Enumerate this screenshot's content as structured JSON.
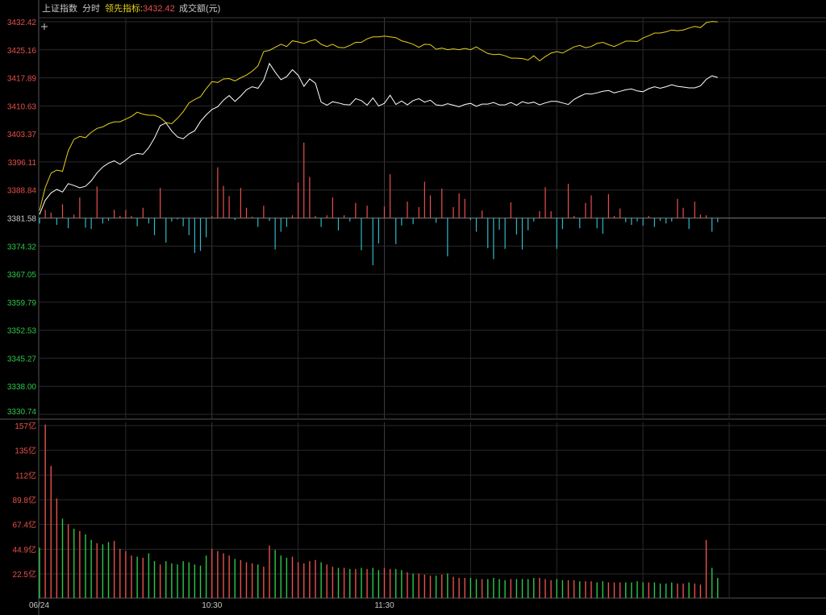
{
  "header": {
    "index_name": "上证指数",
    "mode": "分时",
    "indicator_label": "领先指标:",
    "indicator_value": "3432.42",
    "volume_label": "成交额(元)"
  },
  "colors": {
    "background": "#000000",
    "grid": "#2a2a2a",
    "up": "#e8504c",
    "down": "#2fb8c8",
    "baseline_label": "#cccccc",
    "price_line": "#ffffff",
    "leading_line": "#e6d11a",
    "volume_green": "#2cc84a",
    "header_text": "#c8c8c8",
    "header_accent": "#e6d11a"
  },
  "chart_data": [
    {
      "type": "line",
      "name": "price-panel",
      "y_ticks": [
        "3432.42",
        "3425.16",
        "3417.89",
        "3410.63",
        "3403.37",
        "3396.11",
        "3388.84",
        "3381.58",
        "3374.32",
        "3367.05",
        "3359.79",
        "3352.53",
        "3345.27",
        "3338.00",
        "3330.74"
      ],
      "ylim": [
        3330.74,
        3432.42
      ],
      "baseline": 3381.58,
      "minutes_total": 240,
      "x_ticks": [
        "06/24",
        "10:30",
        "11:30"
      ],
      "series": [
        {
          "key": "price",
          "minute": [
            0,
            2,
            4,
            6,
            8,
            10,
            12,
            14,
            16,
            18,
            20,
            22,
            24,
            26,
            28,
            30,
            32,
            34,
            36,
            38,
            40,
            42,
            44,
            46,
            48,
            50,
            52,
            54,
            56,
            58,
            60,
            62,
            64,
            66,
            68,
            70,
            72,
            74,
            76,
            78,
            80,
            82,
            84,
            86,
            88,
            90,
            92,
            94,
            96,
            98,
            100,
            102,
            104,
            106,
            108,
            110,
            112,
            114,
            116,
            118,
            120,
            122,
            124,
            126,
            128,
            130,
            132,
            134,
            136,
            138,
            140,
            142,
            144,
            146,
            148,
            150,
            152,
            154,
            156,
            158,
            160,
            162,
            164,
            166,
            168,
            170,
            172,
            174,
            176,
            178,
            180,
            182,
            184,
            186,
            188,
            190,
            192,
            194,
            196,
            198,
            200,
            202,
            204,
            206,
            208,
            210,
            212,
            214,
            216,
            218,
            220,
            222,
            224,
            226,
            228,
            230,
            232,
            234,
            236
          ],
          "values": [
            3382.5,
            3386.2,
            3388.1,
            3389.0,
            3388.3,
            3390.5,
            3390.0,
            3389.4,
            3389.8,
            3391.2,
            3393.3,
            3394.8,
            3395.8,
            3396.4,
            3395.5,
            3396.6,
            3397.8,
            3398.3,
            3398.1,
            3399.8,
            3402.3,
            3405.5,
            3406.2,
            3404.1,
            3402.6,
            3402.1,
            3403.4,
            3404.2,
            3406.6,
            3408.3,
            3409.7,
            3410.4,
            3412.1,
            3413.3,
            3411.8,
            3413.2,
            3414.8,
            3415.6,
            3415.2,
            3417.3,
            3421.6,
            3419.4,
            3417.4,
            3418.2,
            3420.0,
            3418.6,
            3415.7,
            3417.6,
            3416.5,
            3411.6,
            3410.8,
            3411.7,
            3411.4,
            3411.0,
            3410.9,
            3412.5,
            3412.0,
            3410.8,
            3412.7,
            3410.6,
            3411.3,
            3413.4,
            3411.0,
            3411.9,
            3410.9,
            3412.0,
            3412.5,
            3411.6,
            3412.1,
            3410.9,
            3410.7,
            3411.2,
            3410.8,
            3410.4,
            3411.0,
            3411.3,
            3410.5,
            3411.1,
            3411.1,
            3411.5,
            3410.9,
            3410.9,
            3411.5,
            3410.8,
            3411.7,
            3411.3,
            3411.6,
            3410.9,
            3411.4,
            3411.8,
            3411.8,
            3411.4,
            3411.0,
            3412.3,
            3413.1,
            3413.8,
            3413.7,
            3414.0,
            3414.4,
            3414.6,
            3414.0,
            3414.4,
            3414.8,
            3415.0,
            3414.5,
            3414.3,
            3415.1,
            3415.6,
            3415.2,
            3415.6,
            3416.1,
            3415.7,
            3415.5,
            3415.3,
            3415.3,
            3415.8,
            3417.5,
            3418.4,
            3418.0
          ]
        },
        {
          "key": "leading",
          "minute": [
            0,
            2,
            4,
            6,
            8,
            10,
            12,
            14,
            16,
            18,
            20,
            22,
            24,
            26,
            28,
            30,
            32,
            34,
            36,
            38,
            40,
            42,
            44,
            46,
            48,
            50,
            52,
            54,
            56,
            58,
            60,
            62,
            64,
            66,
            68,
            70,
            72,
            74,
            76,
            78,
            80,
            82,
            84,
            86,
            88,
            90,
            92,
            94,
            96,
            98,
            100,
            102,
            104,
            106,
            108,
            110,
            112,
            114,
            116,
            118,
            120,
            122,
            124,
            126,
            128,
            130,
            132,
            134,
            136,
            138,
            140,
            142,
            144,
            146,
            148,
            150,
            152,
            154,
            156,
            158,
            160,
            162,
            164,
            166,
            168,
            170,
            172,
            174,
            176,
            178,
            180,
            182,
            184,
            186,
            188,
            190,
            192,
            194,
            196,
            198,
            200,
            202,
            204,
            206,
            208,
            210,
            212,
            214,
            216,
            218,
            220,
            222,
            224,
            226,
            228,
            230,
            232,
            234,
            236
          ],
          "values": [
            3383.5,
            3389.5,
            3393.2,
            3394.0,
            3393.7,
            3399.0,
            3402.0,
            3402.7,
            3402.4,
            3403.8,
            3404.8,
            3405.2,
            3406.0,
            3406.5,
            3406.5,
            3407.2,
            3407.9,
            3409.0,
            3408.5,
            3408.2,
            3408.2,
            3407.6,
            3406.3,
            3406.0,
            3407.4,
            3409.1,
            3411.4,
            3412.3,
            3413.0,
            3415.1,
            3416.9,
            3416.7,
            3417.6,
            3417.7,
            3417.1,
            3417.9,
            3418.6,
            3419.6,
            3421.0,
            3424.7,
            3425.0,
            3425.8,
            3426.6,
            3426.0,
            3427.5,
            3427.2,
            3426.8,
            3427.4,
            3427.8,
            3426.6,
            3426.0,
            3426.6,
            3425.8,
            3425.7,
            3426.3,
            3427.1,
            3427.1,
            3428.0,
            3428.5,
            3428.5,
            3428.7,
            3428.5,
            3428.3,
            3427.5,
            3427.1,
            3426.6,
            3425.8,
            3426.6,
            3426.5,
            3425.3,
            3425.6,
            3425.2,
            3425.4,
            3425.2,
            3425.5,
            3425.2,
            3425.9,
            3425.0,
            3424.2,
            3423.9,
            3424.0,
            3423.6,
            3423.0,
            3423.0,
            3422.9,
            3422.5,
            3423.6,
            3422.3,
            3423.4,
            3424.3,
            3424.7,
            3424.3,
            3425.1,
            3425.9,
            3426.3,
            3425.7,
            3426.0,
            3426.8,
            3427.1,
            3426.5,
            3426.0,
            3426.7,
            3427.4,
            3427.4,
            3427.3,
            3428.2,
            3428.8,
            3429.5,
            3429.5,
            3429.8,
            3430.3,
            3430.1,
            3430.3,
            3430.8,
            3431.2,
            3430.9,
            3432.2,
            3432.5,
            3432.4
          ]
        }
      ],
      "buy_sell_bars": {
        "minute": [
          0,
          2,
          4,
          6,
          8,
          10,
          12,
          14,
          16,
          18,
          20,
          22,
          24,
          26,
          28,
          30,
          32,
          34,
          36,
          38,
          40,
          42,
          44,
          46,
          48,
          50,
          52,
          54,
          56,
          58,
          60,
          62,
          64,
          66,
          68,
          70,
          72,
          74,
          76,
          78,
          80,
          82,
          84,
          86,
          88,
          90,
          92,
          94,
          96,
          98,
          100,
          102,
          104,
          106,
          108,
          110,
          112,
          114,
          116,
          118,
          120,
          122,
          124,
          126,
          128,
          130,
          132,
          134,
          136,
          138,
          140,
          142,
          144,
          146,
          148,
          150,
          152,
          154,
          156,
          158,
          160,
          162,
          164,
          166,
          168,
          170,
          172,
          174,
          176,
          178,
          180,
          182,
          184,
          186,
          188,
          190,
          192,
          194,
          196,
          198,
          200,
          202,
          204,
          206,
          208,
          210,
          212,
          214,
          216,
          218,
          220,
          222,
          224,
          226,
          228,
          230,
          232,
          234,
          236
        ],
        "values": [
          -0.8,
          1.2,
          0.8,
          -1.0,
          2.0,
          -1.5,
          0.5,
          3.0,
          -1.4,
          -1.6,
          4.6,
          -0.8,
          -0.4,
          1.2,
          0.3,
          1.2,
          0.3,
          -1.2,
          1.5,
          -0.8,
          -2.5,
          4.4,
          -3.6,
          -0.5,
          -0.2,
          -1.2,
          -2.5,
          -5.1,
          -4.8,
          -2.8,
          0.3,
          7.4,
          4.7,
          3.2,
          -0.3,
          4.4,
          1.5,
          0.2,
          -1.3,
          1.8,
          -0.4,
          -4.6,
          -2.0,
          -1.3,
          0.4,
          5.2,
          11.0,
          6.0,
          0.3,
          -1.3,
          0.4,
          3.0,
          -1.8,
          0.4,
          -0.5,
          2.2,
          -4.7,
          1.8,
          -6.9,
          -3.7,
          1.7,
          6.4,
          -3.8,
          -1.1,
          2.4,
          -0.9,
          1.6,
          5.3,
          3.3,
          -0.7,
          4.3,
          -5.6,
          1.6,
          3.6,
          2.8,
          -0.3,
          -2.0,
          1.1,
          -4.4,
          -6.0,
          -1.7,
          -4.5,
          2.3,
          -2.4,
          -4.6,
          -1.8,
          -0.5,
          1.0,
          4.5,
          1.0,
          -4.5,
          -1.6,
          5.0,
          0.3,
          -1.5,
          2.2,
          3.3,
          -1.5,
          -2.3,
          3.5,
          0.3,
          1.4,
          -0.6,
          -1.0,
          -0.5,
          -1.1,
          0.3,
          -1.3,
          -0.4,
          -0.8,
          -0.5,
          2.8,
          1.5,
          -1.6,
          2.4,
          0.5,
          0.4,
          -2.0,
          -0.6
        ]
      }
    },
    {
      "type": "bar",
      "name": "turnover-panel",
      "y_ticks": [
        "157亿",
        "135亿",
        "112亿",
        "89.8亿",
        "67.4亿",
        "44.9亿",
        "22.5亿"
      ],
      "ylim": [
        0,
        157
      ],
      "unit": "亿",
      "minute": [
        0,
        2,
        4,
        6,
        8,
        10,
        12,
        14,
        16,
        18,
        20,
        22,
        24,
        26,
        28,
        30,
        32,
        34,
        36,
        38,
        40,
        42,
        44,
        46,
        48,
        50,
        52,
        54,
        56,
        58,
        60,
        62,
        64,
        66,
        68,
        70,
        72,
        74,
        76,
        78,
        80,
        82,
        84,
        86,
        88,
        90,
        92,
        94,
        96,
        98,
        100,
        102,
        104,
        106,
        108,
        110,
        112,
        114,
        116,
        118,
        120,
        122,
        124,
        126,
        128,
        130,
        132,
        134,
        136,
        138,
        140,
        142,
        144,
        146,
        148,
        150,
        152,
        154,
        156,
        158,
        160,
        162,
        164,
        166,
        168,
        170,
        172,
        174,
        176,
        178,
        180,
        182,
        184,
        186,
        188,
        190,
        192,
        194,
        196,
        198,
        200,
        202,
        204,
        206,
        208,
        210,
        212,
        214,
        216,
        218,
        220,
        222,
        224,
        226,
        228,
        230,
        232,
        234,
        236
      ],
      "values": [
        45,
        155,
        118,
        89,
        71,
        66,
        62,
        60,
        57,
        52,
        49,
        48,
        50,
        51,
        44,
        42,
        38,
        37,
        36,
        40,
        33,
        30,
        33,
        31,
        30,
        33,
        32,
        30,
        29,
        38,
        44,
        42,
        40,
        38,
        35,
        34,
        32,
        31,
        30,
        28,
        47,
        43,
        38,
        36,
        37,
        32,
        31,
        33,
        34,
        32,
        30,
        28,
        27,
        27,
        26,
        26,
        27,
        26,
        27,
        25,
        27,
        26,
        26,
        25,
        23,
        22,
        22,
        21,
        20,
        20,
        21,
        22,
        19,
        18,
        18,
        18,
        17,
        17,
        17,
        18,
        17,
        16,
        17,
        17,
        17,
        17,
        18,
        18,
        17,
        16,
        17,
        16,
        16,
        16,
        15,
        15,
        15,
        14,
        15,
        14,
        14,
        14,
        14,
        14,
        15,
        14,
        14,
        14,
        13,
        13,
        14,
        13,
        13,
        14,
        13,
        12,
        52,
        27,
        18
      ],
      "up_flags": [
        0,
        1,
        1,
        1,
        0,
        1,
        0,
        1,
        0,
        0,
        1,
        0,
        0,
        1,
        1,
        1,
        1,
        0,
        1,
        0,
        0,
        1,
        0,
        0,
        0,
        0,
        0,
        0,
        0,
        0,
        1,
        1,
        1,
        1,
        0,
        1,
        1,
        1,
        0,
        1,
        1,
        0,
        0,
        0,
        1,
        1,
        1,
        1,
        1,
        0,
        1,
        1,
        0,
        1,
        0,
        1,
        0,
        1,
        0,
        0,
        1,
        1,
        0,
        0,
        1,
        0,
        1,
        1,
        1,
        0,
        1,
        0,
        1,
        1,
        1,
        0,
        0,
        1,
        0,
        0,
        0,
        0,
        1,
        0,
        0,
        0,
        0,
        1,
        1,
        1,
        0,
        0,
        1,
        1,
        0,
        1,
        1,
        0,
        0,
        1,
        1,
        1,
        0,
        0,
        0,
        0,
        1,
        0,
        0,
        0,
        0,
        1,
        1,
        0,
        1,
        1,
        1,
        0,
        0
      ],
      "x_ticks": [
        "06/24",
        "10:30",
        "11:30"
      ]
    }
  ]
}
